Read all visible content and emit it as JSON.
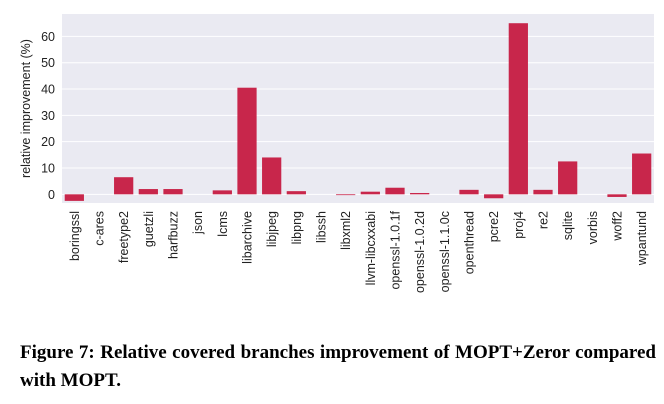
{
  "chart_data": {
    "type": "bar",
    "categories": [
      "boringssl",
      "c-ares",
      "freetype2",
      "guetzli",
      "harfbuzz",
      "json",
      "lcms",
      "libarchive",
      "libjpeg",
      "libpng",
      "libssh",
      "libxml2",
      "llvm-libcxxabi",
      "openssl-1.0.1f",
      "openssl-1.0.2d",
      "openssl-1.1.0c",
      "openthread",
      "pcre2",
      "proj4",
      "re2",
      "sqlite",
      "vorbis",
      "woff2",
      "wpantund"
    ],
    "values": [
      -2.5,
      0,
      6.5,
      2,
      2,
      0,
      1.5,
      40.5,
      14,
      1.2,
      0,
      -0.3,
      1,
      2.5,
      0.5,
      0,
      1.7,
      -1.5,
      65,
      1.7,
      12.5,
      0,
      -1,
      15.5
    ],
    "title": "",
    "xlabel": "",
    "ylabel": "relative improvement (%)",
    "ylim": [
      -3.3,
      68.5
    ],
    "yticks": [
      0,
      10,
      20,
      30,
      40,
      50,
      60
    ],
    "grid": true,
    "bar_color": "#c8264b",
    "background_color": "#eaeaf2",
    "grid_color": "#ffffff"
  },
  "caption": "Figure 7: Relative covered branches improvement of MOPT+Zeror compared with MOPT."
}
